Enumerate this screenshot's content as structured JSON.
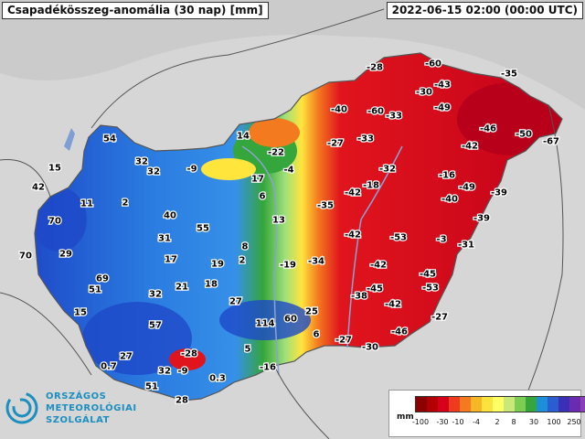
{
  "header": {
    "title": "Csapadékösszeg-anomália (30 nap) [mm]",
    "timestamp": "2022-06-15 02:00 (00:00 UTC)"
  },
  "logo": {
    "icon": "omsz-swirl-icon",
    "lines": [
      "ORSZÁGOS",
      "METEOROLÓGIAI",
      "SZOLGÁLAT"
    ]
  },
  "legend": {
    "unit": "mm",
    "colors": [
      "#8b0000",
      "#b30000",
      "#d7001a",
      "#ee3b1e",
      "#f47a20",
      "#f7b625",
      "#fae33c",
      "#ffff66",
      "#c8e879",
      "#7ccd52",
      "#35a63b",
      "#1d8fd8",
      "#2a5ed0",
      "#3b2fb8",
      "#6a2bb0",
      "#8a3fb5"
    ],
    "ticks": [
      "-100",
      "-30",
      "-10",
      "-4",
      "2",
      "8",
      "30",
      "100",
      "250"
    ]
  },
  "colors": {
    "background": "#d9d9d9",
    "border": "#555555",
    "dry_dark": "#c2001a",
    "dry": "#e0141c",
    "orange": "#f47a20",
    "yellow": "#ffe53c",
    "green": "#33a83b",
    "blue": "#2a7be0",
    "deep_blue": "#1e49c8"
  },
  "values": [
    "54",
    "15",
    "42",
    "32",
    "32",
    "-9",
    "14",
    "-22",
    "-4",
    "17",
    "6",
    "11",
    "2",
    "40",
    "55",
    "13",
    "70",
    "29",
    "70",
    "31",
    "17",
    "8",
    "19",
    "2",
    "-19",
    "-34",
    "-42",
    "-53",
    "-3",
    "-31",
    "69",
    "51",
    "32",
    "21",
    "18",
    "27",
    "15",
    "57",
    "114",
    "60",
    "25",
    "6",
    "-27",
    "-30",
    "-46",
    "-27",
    "-38",
    "-42",
    "-53",
    "-45",
    "27",
    "0.7",
    "-28",
    "-9",
    "32",
    "0.3",
    "5",
    "-16",
    "51",
    "28",
    "-28",
    "-60",
    "-35",
    "-30",
    "-43",
    "-40",
    "-60",
    "-33",
    "-49",
    "-46",
    "-50",
    "-67",
    "-42",
    "-27",
    "-33",
    "-32",
    "-16",
    "-18",
    "-42",
    "-40",
    "-49",
    "-39",
    "-35",
    "-39",
    "-42",
    "-45"
  ]
}
